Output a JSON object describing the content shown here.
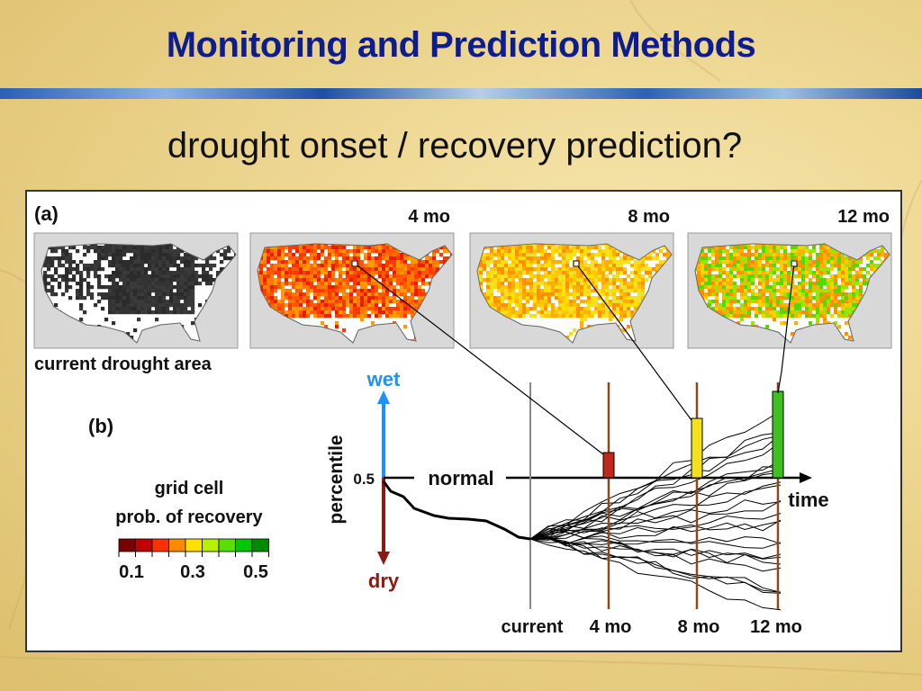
{
  "slide": {
    "title": "Monitoring and Prediction Methods",
    "subtitle": "drought onset / recovery prediction?"
  },
  "figure": {
    "panel_a": {
      "label": "(a)",
      "maps": [
        {
          "heading": "",
          "caption": "current drought area",
          "scheme": "drought"
        },
        {
          "heading": "4 mo",
          "caption": "",
          "scheme": "red"
        },
        {
          "heading": "8 mo",
          "caption": "",
          "scheme": "yellow"
        },
        {
          "heading": "12 mo",
          "caption": "",
          "scheme": "green"
        }
      ]
    },
    "panel_b": {
      "label": "(b)",
      "legend": {
        "title_line1": "grid cell",
        "title_line2": "prob. of recovery",
        "colors": [
          "#7a0000",
          "#c40000",
          "#ff3000",
          "#ff8a00",
          "#ffe000",
          "#b8f000",
          "#55e000",
          "#00c800",
          "#008a00"
        ],
        "ticks": [
          "0.1",
          "0.3",
          "0.5"
        ]
      },
      "axis": {
        "ylabel": "percentile",
        "wet": "wet",
        "dry": "dry",
        "normal": "normal",
        "normal_value": "0.5",
        "time": "time"
      },
      "time_labels": [
        "current",
        "4 mo",
        "8 mo",
        "12 mo"
      ],
      "bar_colors": [
        "#c0281c",
        "#f2e11c",
        "#3fbf22"
      ],
      "colors": {
        "wet": "#1e90ff",
        "dry": "#8b1a10",
        "leadline": "#8b4a1e"
      }
    }
  }
}
